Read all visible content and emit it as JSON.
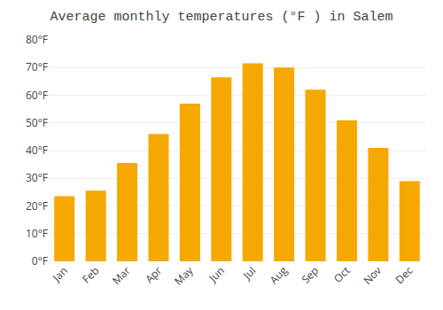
{
  "chart_data": {
    "type": "bar",
    "title": "Average monthly temperatures (°F ) in Salem",
    "categories": [
      "Jan",
      "Feb",
      "Mar",
      "Apr",
      "May",
      "Jun",
      "Jul",
      "Aug",
      "Sep",
      "Oct",
      "Nov",
      "Dec"
    ],
    "values": [
      23.5,
      25.5,
      35.5,
      46,
      57,
      66.5,
      71.5,
      70,
      62,
      51,
      41,
      29
    ],
    "color": "#F5A800",
    "ylim": [
      0,
      80
    ],
    "yticks": [
      {
        "value": 0,
        "label": "0°F"
      },
      {
        "value": 10,
        "label": "10°F"
      },
      {
        "value": 20,
        "label": "20°F"
      },
      {
        "value": 30,
        "label": "30°F"
      },
      {
        "value": 40,
        "label": "40°F"
      },
      {
        "value": 50,
        "label": "50°F"
      },
      {
        "value": 60,
        "label": "60°F"
      },
      {
        "value": 70,
        "label": "70°F"
      },
      {
        "value": 80,
        "label": "80°F"
      }
    ],
    "grid": true
  }
}
